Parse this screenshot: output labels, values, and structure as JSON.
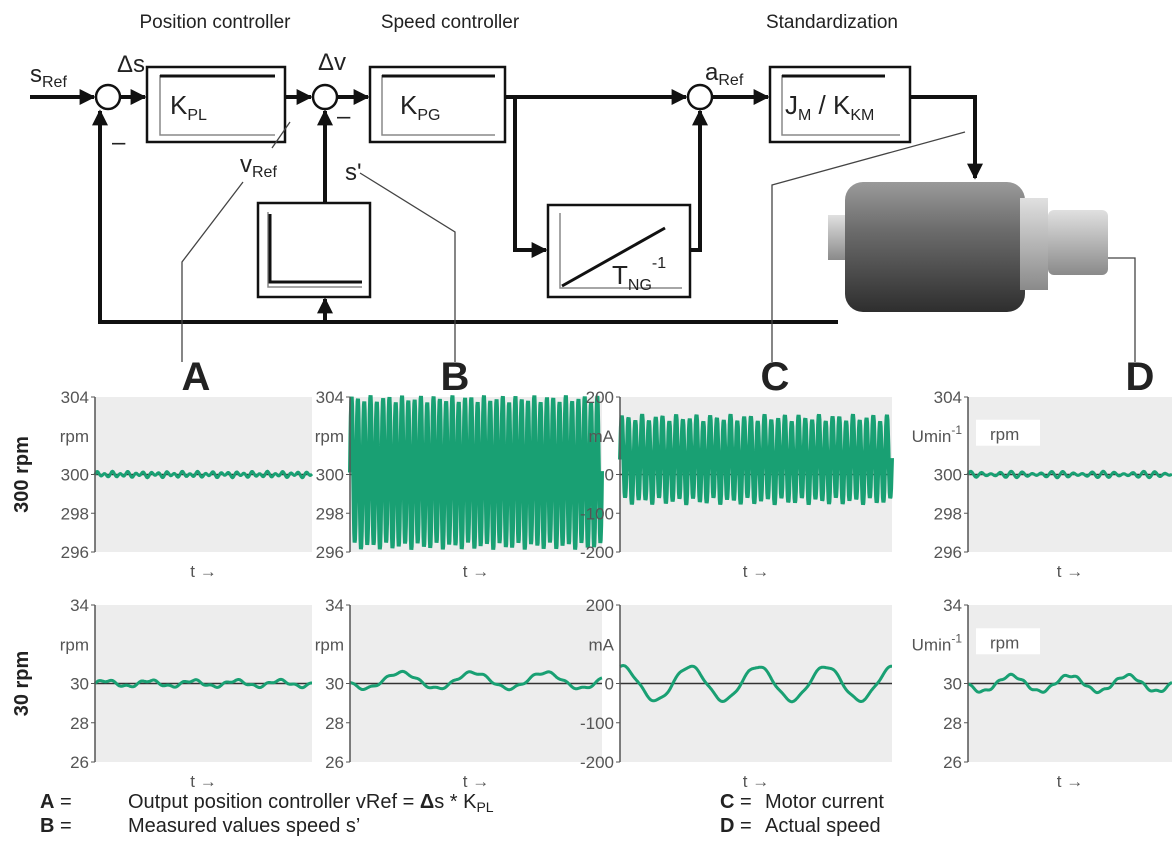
{
  "headings": [
    "Position controller",
    "Speed controller",
    "Standardization"
  ],
  "signals": {
    "s_ref": {
      "main": "s",
      "sub": "Ref"
    },
    "delta_s": "Δs",
    "delta_v": "Δv",
    "a_ref": {
      "main": "a",
      "sub": "Ref"
    },
    "v_ref": {
      "main": "v",
      "sub": "Ref"
    },
    "s_prime": "s'",
    "minus": "–"
  },
  "blocks": {
    "position": {
      "main": "K",
      "sub": "PL"
    },
    "speed": {
      "main": "K",
      "sub": "PG"
    },
    "standard": {
      "main": "J",
      "sub": "M",
      "mid": " / K",
      "sub2": "KM"
    },
    "integral": {
      "main": "T",
      "sub": "NG",
      "sup": "-1"
    }
  },
  "columns": [
    "A",
    "B",
    "C",
    "D"
  ],
  "time_label": "t  →",
  "rows": [
    {
      "label": "300 rpm",
      "panels": [
        {
          "ylim": [
            296,
            304
          ],
          "yticks": [
            296,
            298,
            300,
            304
          ],
          "unit": "rpm"
        },
        {
          "ylim": [
            296,
            304
          ],
          "yticks": [
            296,
            298,
            300,
            304
          ],
          "unit": "rpm"
        },
        {
          "ylim": [
            -200,
            200
          ],
          "yticks": [
            -200,
            -100,
            0,
            200
          ],
          "unit": "mA"
        },
        {
          "ylim": [
            296,
            304
          ],
          "yticks": [
            296,
            298,
            300,
            304
          ],
          "unit": "Umin",
          "unit_sup": "-1",
          "inner_unit": "rpm"
        }
      ]
    },
    {
      "label": "30 rpm",
      "panels": [
        {
          "ylim": [
            26,
            34
          ],
          "yticks": [
            26,
            28,
            30,
            34
          ],
          "unit": "rpm"
        },
        {
          "ylim": [
            26,
            34
          ],
          "yticks": [
            26,
            28,
            30,
            34
          ],
          "unit": "rpm"
        },
        {
          "ylim": [
            -200,
            200
          ],
          "yticks": [
            -200,
            -100,
            0,
            200
          ],
          "unit": "mA"
        },
        {
          "ylim": [
            26,
            34
          ],
          "yticks": [
            26,
            28,
            30,
            34
          ],
          "unit": "Umin",
          "unit_sup": "-1",
          "inner_unit": "rpm"
        }
      ]
    }
  ],
  "legend": [
    {
      "key": "A",
      "eq": "=",
      "text": "Output position controller vRef = ",
      "bold": "Δ",
      "rest": "s * K",
      "sub": "PL"
    },
    {
      "key": "B",
      "eq": "=",
      "text": "Measured values speed s’"
    },
    {
      "key": "C",
      "eq": "=",
      "text": "Motor current"
    },
    {
      "key": "D",
      "eq": "=",
      "text": "Actual speed"
    }
  ]
}
